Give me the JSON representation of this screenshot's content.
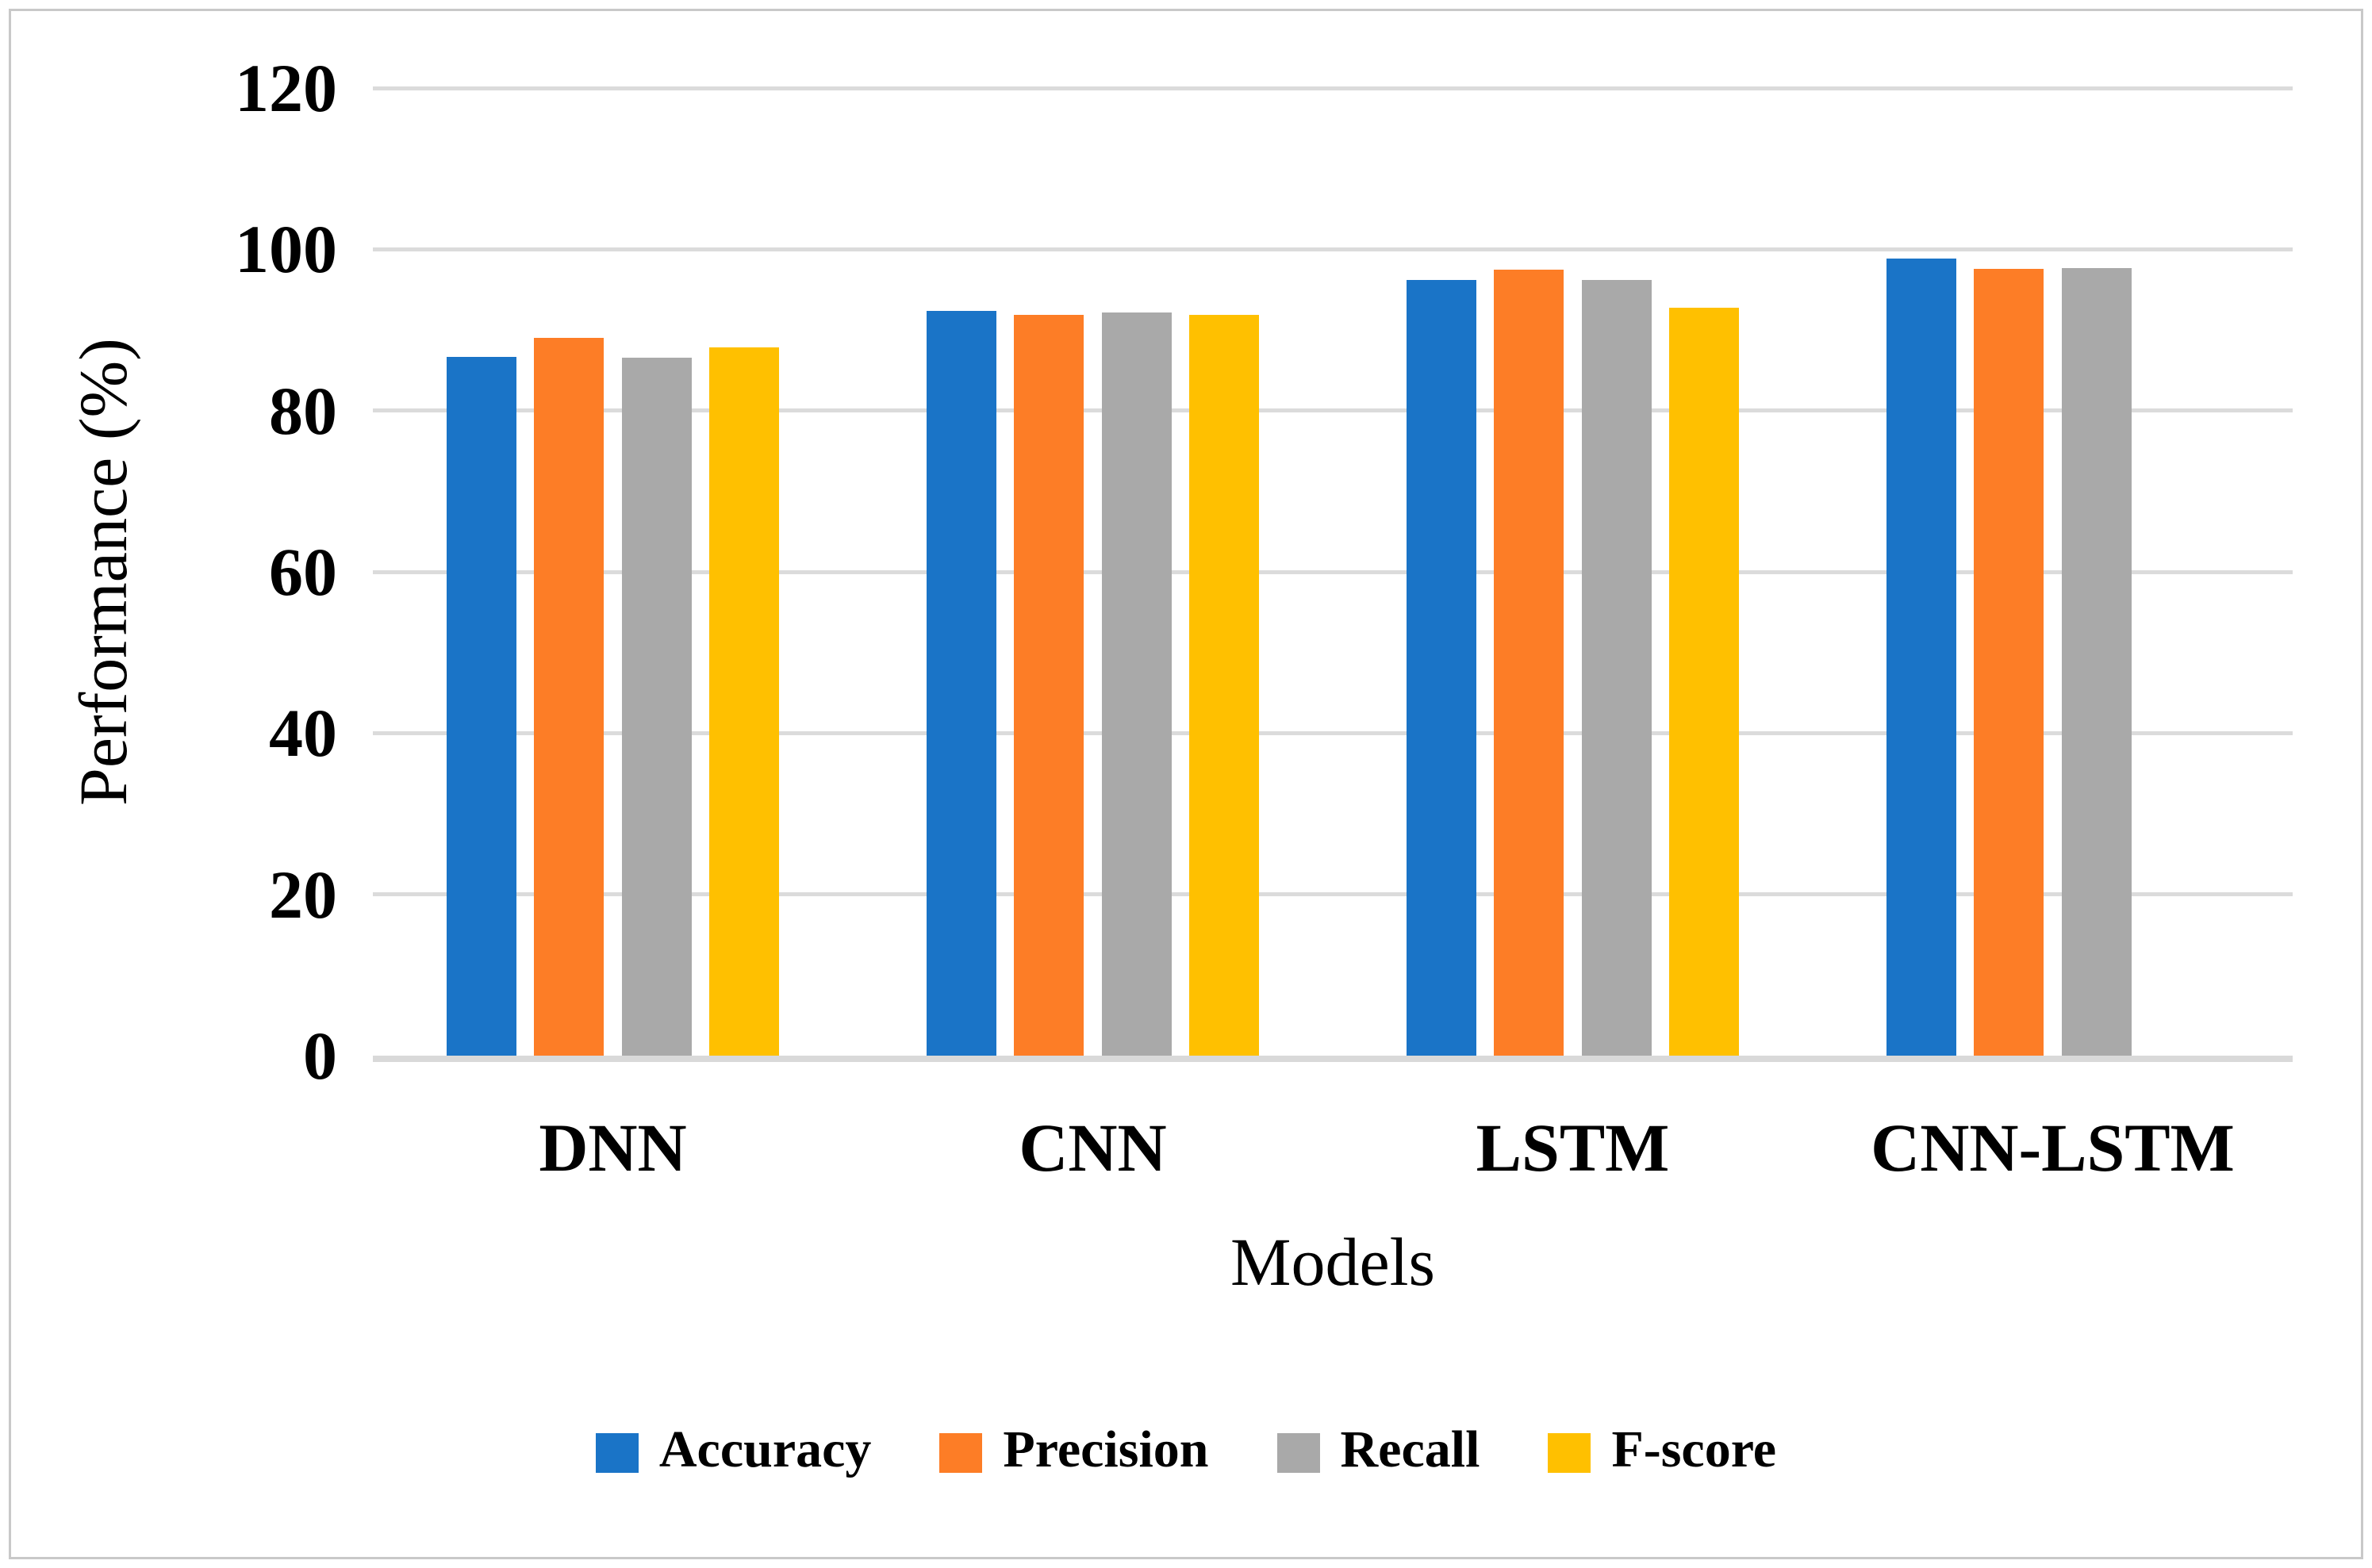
{
  "figure": {
    "background_color": "#FFFFFF",
    "border_color": "#C9C9C9"
  },
  "chart_data": {
    "type": "bar",
    "title": "",
    "categories": [
      "DNN",
      "CNN",
      "LSTM",
      "CNN-LSTM"
    ],
    "series": [
      {
        "name": "Accuracy",
        "color": "#1A74C7",
        "values": [
          86.7,
          92.4,
          96.2,
          98.9
        ]
      },
      {
        "name": "Precision",
        "color": "#FD7D26",
        "values": [
          89.0,
          91.9,
          97.5,
          97.6
        ]
      },
      {
        "name": "Recall",
        "color": "#A9A9A9",
        "values": [
          86.6,
          92.2,
          96.2,
          97.7
        ]
      },
      {
        "name": "F-score",
        "color": "#FFC000",
        "values": [
          87.8,
          91.9,
          92.8,
          null
        ]
      }
    ],
    "xlabel": "Models",
    "ylabel": "Performance (%)",
    "ylim": [
      0,
      120
    ],
    "ytick_step": 20,
    "yticks": [
      "0",
      "20",
      "40",
      "60",
      "80",
      "100",
      "120"
    ],
    "grid": true,
    "gridline_color": "#DBDBDB",
    "axis_line_color": "#D9D9D9",
    "legend_position": "bottom"
  }
}
